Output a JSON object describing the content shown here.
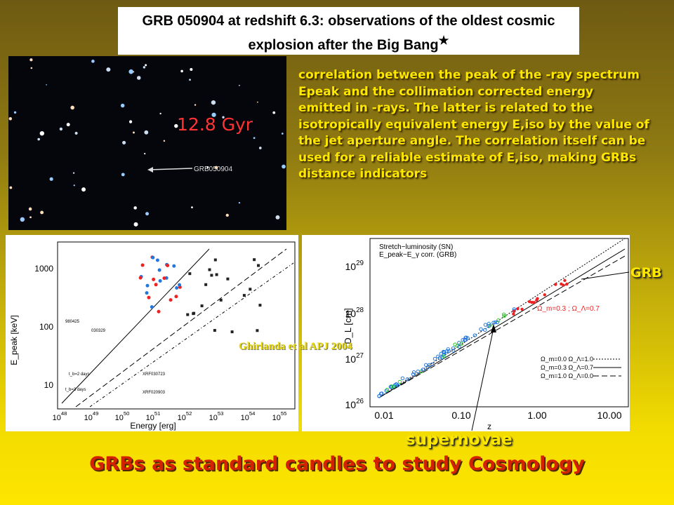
{
  "title": "GRB 050904 at redshift 6.3: observations of the oldest cosmic explosion after the Big Bang",
  "title_mark": "★",
  "image": {
    "age": "12.8 Gyr",
    "label": "GRB050904"
  },
  "description": "correlation between the peak of the -ray spectrum Epeak and the collimation corrected energy emitted in -rays. The latter is related to the isotropically equivalent energy E,iso by the value of the jet aperture angle. The correlation itself can be used for a reliable estimate of E,iso, making GRBs distance indicators",
  "left_plot": {
    "y_label": "E_peak [keV]",
    "x_label": "Energy [erg]",
    "yticks": [
      "1000",
      "100",
      "10"
    ],
    "xticks": [
      {
        "base": "10",
        "exp": "48"
      },
      {
        "base": "10",
        "exp": "49"
      },
      {
        "base": "10",
        "exp": "50"
      },
      {
        "base": "10",
        "exp": "51"
      },
      {
        "base": "10",
        "exp": "52"
      },
      {
        "base": "10",
        "exp": "53"
      },
      {
        "base": "10",
        "exp": "54"
      },
      {
        "base": "10",
        "exp": "55"
      }
    ],
    "annotations": [
      "980425",
      "030329",
      "t_b=2 days",
      "t_b=3 days",
      "XRF030723",
      "XRF020903"
    ]
  },
  "right_plot": {
    "legend": [
      "Stretch−luminosity (SN)",
      "E_peak−E_γ corr. (GRB)"
    ],
    "y_label": "D_L [cm]",
    "x_label": "z",
    "yticks": [
      {
        "base": "10",
        "exp": "29"
      },
      {
        "base": "10",
        "exp": "28"
      },
      {
        "base": "10",
        "exp": "27"
      },
      {
        "base": "10",
        "exp": "26"
      }
    ],
    "xticks": [
      "0.01",
      "0.10",
      "1.00",
      "10.00"
    ],
    "annotation": "Ω_m=0.3 ; Ω_Λ=0.7",
    "cosmologies": [
      "Ω_m=0.0  Ω_Λ=1.0",
      "Ω_m=0.3  Ω_Λ=0.7",
      "Ω_m=1.0  Ω_Λ=0.0"
    ]
  },
  "citation": "Ghirlanda et al APJ 2004",
  "labels": {
    "grb": "GRB",
    "supernovae": "supernovae"
  },
  "footer": "GRBs as standard candles to study Cosmology"
}
